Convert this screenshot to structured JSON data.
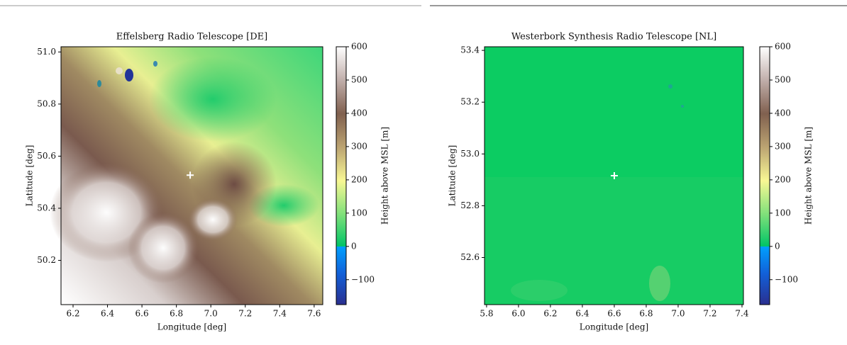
{
  "chart_data": [
    {
      "type": "heatmap",
      "title": "Effelsberg Radio Telescope [DE]",
      "xlabel": "Longitude [deg]",
      "ylabel": "Latitude [deg]",
      "xlim": [
        6.13,
        7.65
      ],
      "ylim": [
        50.03,
        51.02
      ],
      "xticks": [
        6.2,
        6.4,
        6.6,
        6.8,
        {
          "value": 7,
          "label": "7.0"
        },
        7.2,
        7.4,
        7.6
      ],
      "yticks": [
        50.2,
        50.4,
        50.6,
        50.8,
        {
          "value": 51,
          "label": "51.0"
        }
      ],
      "marker": {
        "x": 6.88,
        "y": 50.527,
        "color": "#ffffff"
      },
      "colorbar": {
        "label": "Height above MSL [m]",
        "lim": [
          -175,
          600
        ],
        "ticks": [
          {
            "value": -100,
            "label": "−100"
          },
          0,
          100,
          200,
          300,
          400,
          500,
          600
        ]
      }
    },
    {
      "type": "heatmap",
      "title": "Westerbork Synthesis Radio Telescope [NL]",
      "xlabel": "Longitude [deg]",
      "ylabel": "Latitude [deg]",
      "xlim": [
        5.787,
        7.409
      ],
      "ylim": [
        52.418,
        53.414
      ],
      "xticks": [
        5.8,
        {
          "value": 6,
          "label": "6.0"
        },
        6.2,
        6.4,
        6.6,
        6.8,
        {
          "value": 7,
          "label": "7.0"
        },
        7.2,
        7.4
      ],
      "yticks": [
        52.6,
        52.8,
        {
          "value": 53,
          "label": "53.0"
        },
        53.2,
        53.4
      ],
      "marker": {
        "x": 6.6,
        "y": 52.916,
        "color": "#ffffff"
      },
      "colorbar": {
        "label": "Height above MSL [m]",
        "lim": [
          -175,
          600
        ],
        "ticks": [
          {
            "value": -100,
            "label": "−100"
          },
          0,
          100,
          200,
          300,
          400,
          500,
          600
        ]
      }
    }
  ]
}
